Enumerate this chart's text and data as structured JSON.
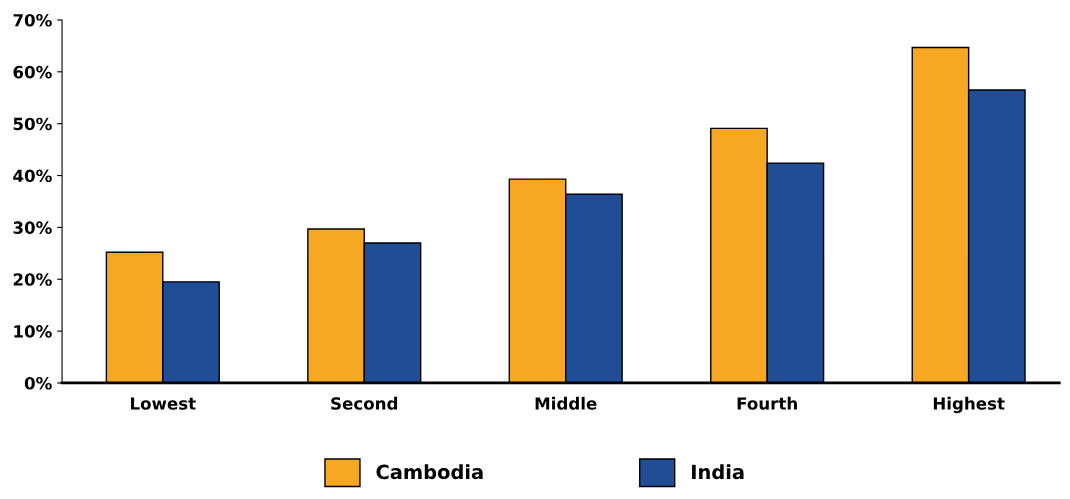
{
  "chart_data": {
    "type": "bar",
    "categories": [
      "Lowest",
      "Second",
      "Middle",
      "Fourth",
      "Highest"
    ],
    "series": [
      {
        "name": "Cambodia",
        "color": "#f7a823",
        "values": [
          25.2,
          29.7,
          39.3,
          49.1,
          64.7
        ]
      },
      {
        "name": "India",
        "color": "#214d97",
        "values": [
          19.5,
          27.0,
          36.4,
          42.4,
          56.5
        ]
      }
    ],
    "ylim": [
      0,
      70
    ],
    "yticks": [
      {
        "value": 0,
        "label": "0%"
      },
      {
        "value": 10,
        "label": "10%"
      },
      {
        "value": 20,
        "label": "20%"
      },
      {
        "value": 30,
        "label": "30%"
      },
      {
        "value": 40,
        "label": "40%"
      },
      {
        "value": 50,
        "label": "50%"
      },
      {
        "value": 60,
        "label": "60%"
      },
      {
        "value": 70,
        "label": "70%"
      }
    ],
    "grid": false,
    "legend": "bottom"
  }
}
